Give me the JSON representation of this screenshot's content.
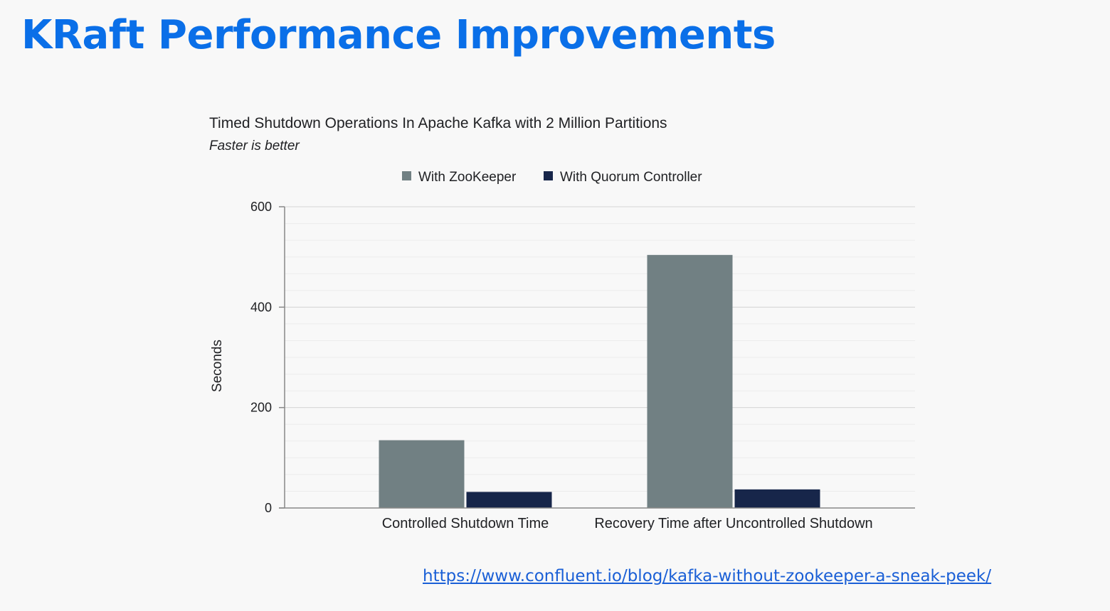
{
  "slide": {
    "title": "KRaft Performance Improvements",
    "source_link": "https://www.confluent.io/blog/kafka-without-zookeeper-a-sneak-peek/"
  },
  "colors": {
    "title": "#0a6fe8",
    "link": "#1a5fd6",
    "with_zookeeper": "#718083",
    "with_quorum_controller": "#17264a",
    "gridline": "#e3e3e3",
    "axis": "#888888"
  },
  "chart_data": {
    "type": "bar",
    "title": "Timed Shutdown Operations In Apache Kafka with 2 Million Partitions",
    "subtitle": "Faster is better",
    "xlabel": "",
    "ylabel": "Seconds",
    "ylim": [
      0,
      600
    ],
    "yticks": [
      0,
      200,
      400,
      600
    ],
    "minor_grid_step": 33.33,
    "grid": true,
    "legend_position": "top",
    "categories": [
      "Controlled Shutdown Time",
      "Recovery Time after Uncontrolled Shutdown"
    ],
    "series": [
      {
        "name": "With ZooKeeper",
        "values": [
          135,
          504
        ]
      },
      {
        "name": "With Quorum Controller",
        "values": [
          32,
          37
        ]
      }
    ]
  }
}
